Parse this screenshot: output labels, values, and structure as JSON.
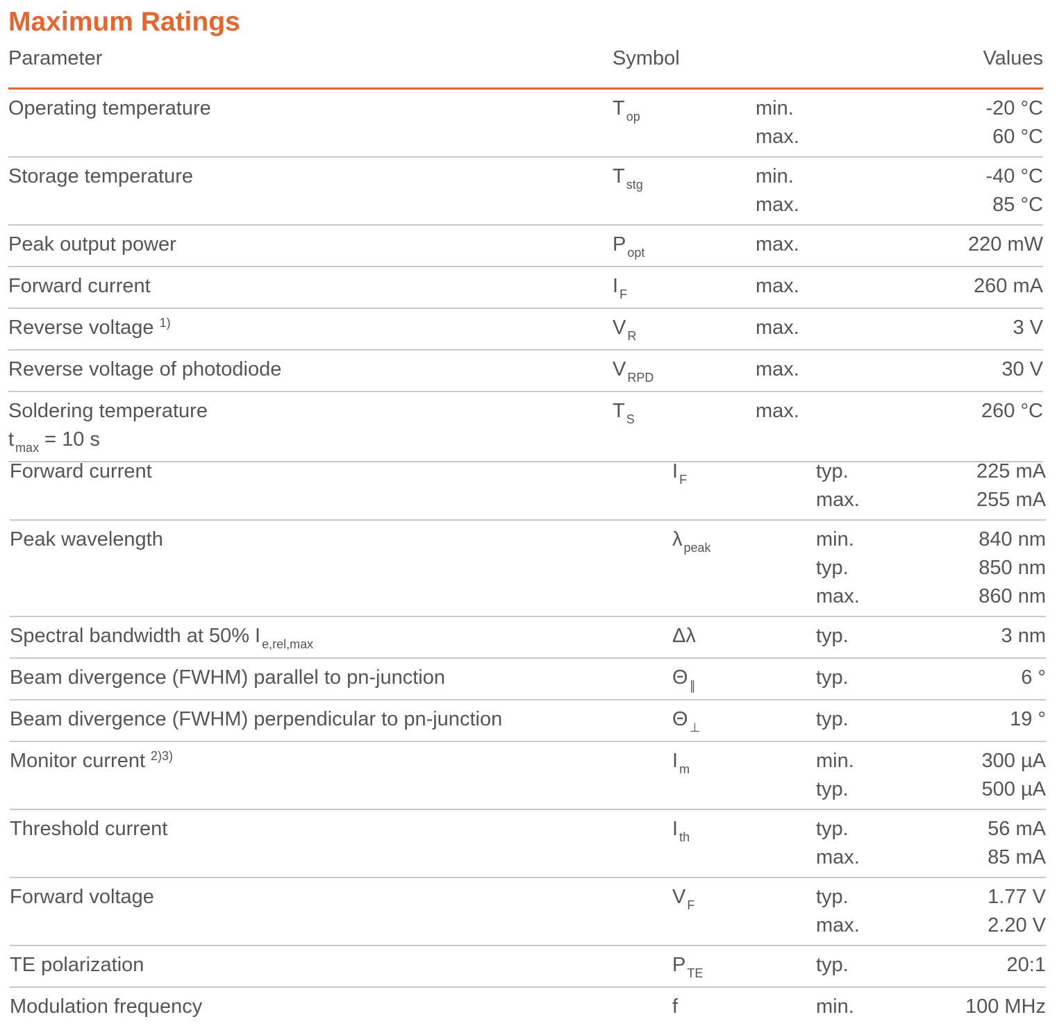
{
  "title": "Maximum Ratings",
  "header": {
    "parameter": "Parameter",
    "symbol": "Symbol",
    "values": "Values"
  },
  "ratings": [
    {
      "parameter": "Operating temperature",
      "symbol": "T",
      "symbol_sub": "op",
      "entries": [
        {
          "qualifier": "min.",
          "value": "-20 °C"
        },
        {
          "qualifier": "max.",
          "value": "60 °C"
        }
      ]
    },
    {
      "parameter": "Storage temperature",
      "symbol": "T",
      "symbol_sub": "stg",
      "entries": [
        {
          "qualifier": "min.",
          "value": "-40 °C"
        },
        {
          "qualifier": "max.",
          "value": "85 °C"
        }
      ]
    },
    {
      "parameter": "Peak output power",
      "symbol": "P",
      "symbol_sub": "opt",
      "entries": [
        {
          "qualifier": "max.",
          "value": "220 mW"
        }
      ]
    },
    {
      "parameter": "Forward current",
      "symbol": "I",
      "symbol_sub": "F",
      "entries": [
        {
          "qualifier": "max.",
          "value": "260 mA"
        }
      ]
    },
    {
      "parameter": "Reverse voltage",
      "note": "1)",
      "symbol": "V",
      "symbol_sub": "R",
      "entries": [
        {
          "qualifier": "max.",
          "value": "3 V"
        }
      ]
    },
    {
      "parameter": "Reverse voltage of photodiode",
      "symbol": "V",
      "symbol_sub": "RPD",
      "entries": [
        {
          "qualifier": "max.",
          "value": "30 V"
        }
      ]
    },
    {
      "parameter": "Soldering temperature",
      "condition": {
        "main": "t",
        "sub": "max",
        "rest": "= 10 s"
      },
      "symbol": "T",
      "symbol_sub": "S",
      "entries": [
        {
          "qualifier": "max.",
          "value": "260 °C"
        }
      ]
    }
  ],
  "characteristics": [
    {
      "parameter": "Forward current",
      "symbol": "I",
      "symbol_sub": "F",
      "entries": [
        {
          "qualifier": "typ.",
          "value": "225 mA"
        },
        {
          "qualifier": "max.",
          "value": "255 mA"
        }
      ]
    },
    {
      "parameter": "Peak wavelength",
      "symbol": "λ",
      "symbol_sub": "peak",
      "entries": [
        {
          "qualifier": "min.",
          "value": "840 nm"
        },
        {
          "qualifier": "typ.",
          "value": "850 nm"
        },
        {
          "qualifier": "max.",
          "value": "860 nm"
        }
      ]
    },
    {
      "parameter": "Spectral bandwidth at 50% I",
      "parameter_sub": "e,rel,max",
      "symbol": "Δλ",
      "entries": [
        {
          "qualifier": "typ.",
          "value": "3 nm"
        }
      ]
    },
    {
      "parameter": "Beam divergence (FWHM) parallel to pn-junction",
      "symbol": "Θ",
      "symbol_sub": "∥",
      "entries": [
        {
          "qualifier": "typ.",
          "value": "6 °"
        }
      ]
    },
    {
      "parameter": "Beam divergence (FWHM) perpendicular to pn-junction",
      "symbol": "Θ",
      "symbol_sub": "⊥",
      "entries": [
        {
          "qualifier": "typ.",
          "value": "19 °"
        }
      ]
    },
    {
      "parameter": "Monitor current",
      "note": "2)3)",
      "symbol": "I",
      "symbol_sub": "m",
      "entries": [
        {
          "qualifier": "min.",
          "value": "300 µA"
        },
        {
          "qualifier": "typ.",
          "value": "500 µA"
        }
      ]
    },
    {
      "parameter": "Threshold current",
      "symbol": "I",
      "symbol_sub": "th",
      "entries": [
        {
          "qualifier": "typ.",
          "value": "56 mA"
        },
        {
          "qualifier": "max.",
          "value": "85 mA"
        }
      ]
    },
    {
      "parameter": "Forward voltage",
      "symbol": "V",
      "symbol_sub": "F",
      "entries": [
        {
          "qualifier": "typ.",
          "value": "1.77 V"
        },
        {
          "qualifier": "max.",
          "value": "2.20 V"
        }
      ]
    },
    {
      "parameter": "TE polarization",
      "symbol": "P",
      "symbol_sub": "TE",
      "entries": [
        {
          "qualifier": "typ.",
          "value": "20:1"
        }
      ]
    },
    {
      "parameter": "Modulation frequency",
      "symbol": "f",
      "entries": [
        {
          "qualifier": "min.",
          "value": "100 MHz"
        }
      ]
    }
  ]
}
